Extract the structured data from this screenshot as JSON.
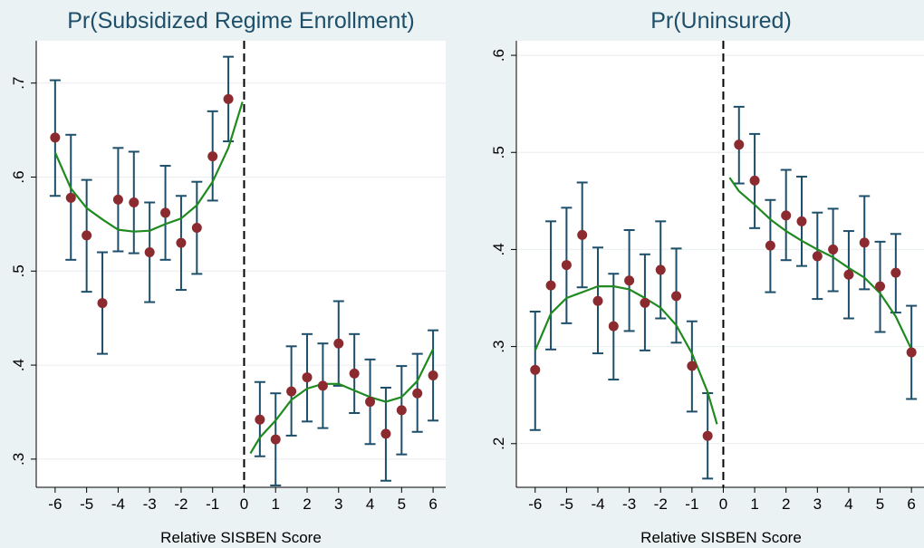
{
  "colors": {
    "background": "#eaf2f3",
    "plot_region": "#ffffff",
    "title": "#1e4f6a",
    "points": "#8b2a2f",
    "error_bars": "#1e4f6a",
    "fit_line": "#1f8a1f",
    "grid": "#e8eef0",
    "cutoff_line": "#000000"
  },
  "chart_data": [
    {
      "type": "scatter",
      "title": "Pr(Subsidized Regime Enrollment)",
      "xlabel": "Relative SISBEN Score",
      "ylabel": "",
      "xlim": [
        -6.6,
        6.4
      ],
      "ylim": [
        0.27,
        0.745
      ],
      "xticks": [
        "-6",
        "-5",
        "-4",
        "-3",
        "-2",
        "-1",
        "0",
        "1",
        "2",
        "3",
        "4",
        "5",
        "6"
      ],
      "yticks": [
        ".3",
        ".4",
        ".5",
        ".6",
        ".7"
      ],
      "grid": true,
      "cutoff": 0,
      "points": [
        {
          "x": -6.0,
          "y": 0.642,
          "lo": 0.58,
          "hi": 0.703
        },
        {
          "x": -5.5,
          "y": 0.578,
          "lo": 0.512,
          "hi": 0.645
        },
        {
          "x": -5.0,
          "y": 0.538,
          "lo": 0.478,
          "hi": 0.597
        },
        {
          "x": -4.5,
          "y": 0.466,
          "lo": 0.412,
          "hi": 0.52
        },
        {
          "x": -4.0,
          "y": 0.576,
          "lo": 0.521,
          "hi": 0.631
        },
        {
          "x": -3.5,
          "y": 0.573,
          "lo": 0.519,
          "hi": 0.627
        },
        {
          "x": -3.0,
          "y": 0.52,
          "lo": 0.467,
          "hi": 0.573
        },
        {
          "x": -2.5,
          "y": 0.562,
          "lo": 0.512,
          "hi": 0.612
        },
        {
          "x": -2.0,
          "y": 0.53,
          "lo": 0.48,
          "hi": 0.58
        },
        {
          "x": -1.5,
          "y": 0.546,
          "lo": 0.497,
          "hi": 0.595
        },
        {
          "x": -1.0,
          "y": 0.622,
          "lo": 0.575,
          "hi": 0.67
        },
        {
          "x": -0.5,
          "y": 0.683,
          "lo": 0.638,
          "hi": 0.728
        },
        {
          "x": 0.5,
          "y": 0.342,
          "lo": 0.303,
          "hi": 0.382
        },
        {
          "x": 1.0,
          "y": 0.321,
          "lo": 0.272,
          "hi": 0.37
        },
        {
          "x": 1.5,
          "y": 0.372,
          "lo": 0.325,
          "hi": 0.42
        },
        {
          "x": 2.0,
          "y": 0.387,
          "lo": 0.34,
          "hi": 0.433
        },
        {
          "x": 2.5,
          "y": 0.378,
          "lo": 0.333,
          "hi": 0.423
        },
        {
          "x": 3.0,
          "y": 0.423,
          "lo": 0.378,
          "hi": 0.468
        },
        {
          "x": 3.5,
          "y": 0.391,
          "lo": 0.349,
          "hi": 0.433
        },
        {
          "x": 4.0,
          "y": 0.361,
          "lo": 0.316,
          "hi": 0.406
        },
        {
          "x": 4.5,
          "y": 0.327,
          "lo": 0.277,
          "hi": 0.376
        },
        {
          "x": 5.0,
          "y": 0.352,
          "lo": 0.305,
          "hi": 0.399
        },
        {
          "x": 5.5,
          "y": 0.37,
          "lo": 0.329,
          "hi": 0.412
        },
        {
          "x": 6.0,
          "y": 0.389,
          "lo": 0.341,
          "hi": 0.437
        }
      ],
      "fits": [
        [
          [
            -6.0,
            0.626
          ],
          [
            -5.5,
            0.588
          ],
          [
            -5.0,
            0.567
          ],
          [
            -4.5,
            0.555
          ],
          [
            -4.0,
            0.544
          ],
          [
            -3.5,
            0.542
          ],
          [
            -3.0,
            0.543
          ],
          [
            -2.5,
            0.55
          ],
          [
            -2.0,
            0.556
          ],
          [
            -1.5,
            0.57
          ],
          [
            -1.0,
            0.595
          ],
          [
            -0.5,
            0.631
          ],
          [
            -0.05,
            0.68
          ]
        ],
        [
          [
            0.2,
            0.306
          ],
          [
            0.5,
            0.323
          ],
          [
            1.0,
            0.341
          ],
          [
            1.5,
            0.363
          ],
          [
            2.0,
            0.375
          ],
          [
            2.5,
            0.38
          ],
          [
            3.0,
            0.38
          ],
          [
            3.5,
            0.373
          ],
          [
            4.0,
            0.366
          ],
          [
            4.5,
            0.361
          ],
          [
            5.0,
            0.366
          ],
          [
            5.5,
            0.383
          ],
          [
            6.0,
            0.417
          ]
        ]
      ]
    },
    {
      "type": "scatter",
      "title": "Pr(Uninsured)",
      "xlabel": "Relative SISBEN Score",
      "ylabel": "",
      "xlim": [
        -6.6,
        6.4
      ],
      "ylim": [
        0.155,
        0.615
      ],
      "xticks": [
        "-6",
        "-5",
        "-4",
        "-3",
        "-2",
        "-1",
        "0",
        "1",
        "2",
        "3",
        "4",
        "5",
        "6"
      ],
      "yticks": [
        ".2",
        ".3",
        ".4",
        ".5",
        ".6"
      ],
      "grid": true,
      "cutoff": 0,
      "points": [
        {
          "x": -6.0,
          "y": 0.276,
          "lo": 0.214,
          "hi": 0.336
        },
        {
          "x": -5.5,
          "y": 0.363,
          "lo": 0.297,
          "hi": 0.429
        },
        {
          "x": -5.0,
          "y": 0.384,
          "lo": 0.324,
          "hi": 0.443
        },
        {
          "x": -4.5,
          "y": 0.415,
          "lo": 0.361,
          "hi": 0.469
        },
        {
          "x": -4.0,
          "y": 0.347,
          "lo": 0.293,
          "hi": 0.402
        },
        {
          "x": -3.5,
          "y": 0.321,
          "lo": 0.266,
          "hi": 0.375
        },
        {
          "x": -3.0,
          "y": 0.368,
          "lo": 0.316,
          "hi": 0.42
        },
        {
          "x": -2.5,
          "y": 0.345,
          "lo": 0.296,
          "hi": 0.395
        },
        {
          "x": -2.0,
          "y": 0.379,
          "lo": 0.329,
          "hi": 0.429
        },
        {
          "x": -1.5,
          "y": 0.352,
          "lo": 0.304,
          "hi": 0.401
        },
        {
          "x": -1.0,
          "y": 0.28,
          "lo": 0.233,
          "hi": 0.326
        },
        {
          "x": -0.5,
          "y": 0.208,
          "lo": 0.164,
          "hi": 0.252
        },
        {
          "x": 0.5,
          "y": 0.508,
          "lo": 0.468,
          "hi": 0.547
        },
        {
          "x": 1.0,
          "y": 0.471,
          "lo": 0.422,
          "hi": 0.519
        },
        {
          "x": 1.5,
          "y": 0.404,
          "lo": 0.356,
          "hi": 0.451
        },
        {
          "x": 2.0,
          "y": 0.435,
          "lo": 0.389,
          "hi": 0.482
        },
        {
          "x": 2.5,
          "y": 0.429,
          "lo": 0.383,
          "hi": 0.475
        },
        {
          "x": 3.0,
          "y": 0.393,
          "lo": 0.349,
          "hi": 0.438
        },
        {
          "x": 3.5,
          "y": 0.4,
          "lo": 0.357,
          "hi": 0.442
        },
        {
          "x": 4.0,
          "y": 0.374,
          "lo": 0.329,
          "hi": 0.419
        },
        {
          "x": 4.5,
          "y": 0.407,
          "lo": 0.359,
          "hi": 0.455
        },
        {
          "x": 5.0,
          "y": 0.362,
          "lo": 0.315,
          "hi": 0.408
        },
        {
          "x": 5.5,
          "y": 0.376,
          "lo": 0.335,
          "hi": 0.416
        },
        {
          "x": 6.0,
          "y": 0.294,
          "lo": 0.246,
          "hi": 0.342
        }
      ],
      "fits": [
        [
          [
            -6.0,
            0.296
          ],
          [
            -5.5,
            0.334
          ],
          [
            -5.0,
            0.35
          ],
          [
            -4.5,
            0.356
          ],
          [
            -4.0,
            0.362
          ],
          [
            -3.5,
            0.362
          ],
          [
            -3.0,
            0.359
          ],
          [
            -2.5,
            0.35
          ],
          [
            -2.0,
            0.34
          ],
          [
            -1.5,
            0.322
          ],
          [
            -1.0,
            0.293
          ],
          [
            -0.5,
            0.253
          ],
          [
            -0.2,
            0.22
          ]
        ],
        [
          [
            0.2,
            0.474
          ],
          [
            0.5,
            0.46
          ],
          [
            1.0,
            0.446
          ],
          [
            1.5,
            0.431
          ],
          [
            2.0,
            0.419
          ],
          [
            2.5,
            0.409
          ],
          [
            3.0,
            0.4
          ],
          [
            3.5,
            0.392
          ],
          [
            4.0,
            0.381
          ],
          [
            4.5,
            0.371
          ],
          [
            5.0,
            0.355
          ],
          [
            5.5,
            0.331
          ],
          [
            6.0,
            0.297
          ]
        ]
      ]
    }
  ]
}
